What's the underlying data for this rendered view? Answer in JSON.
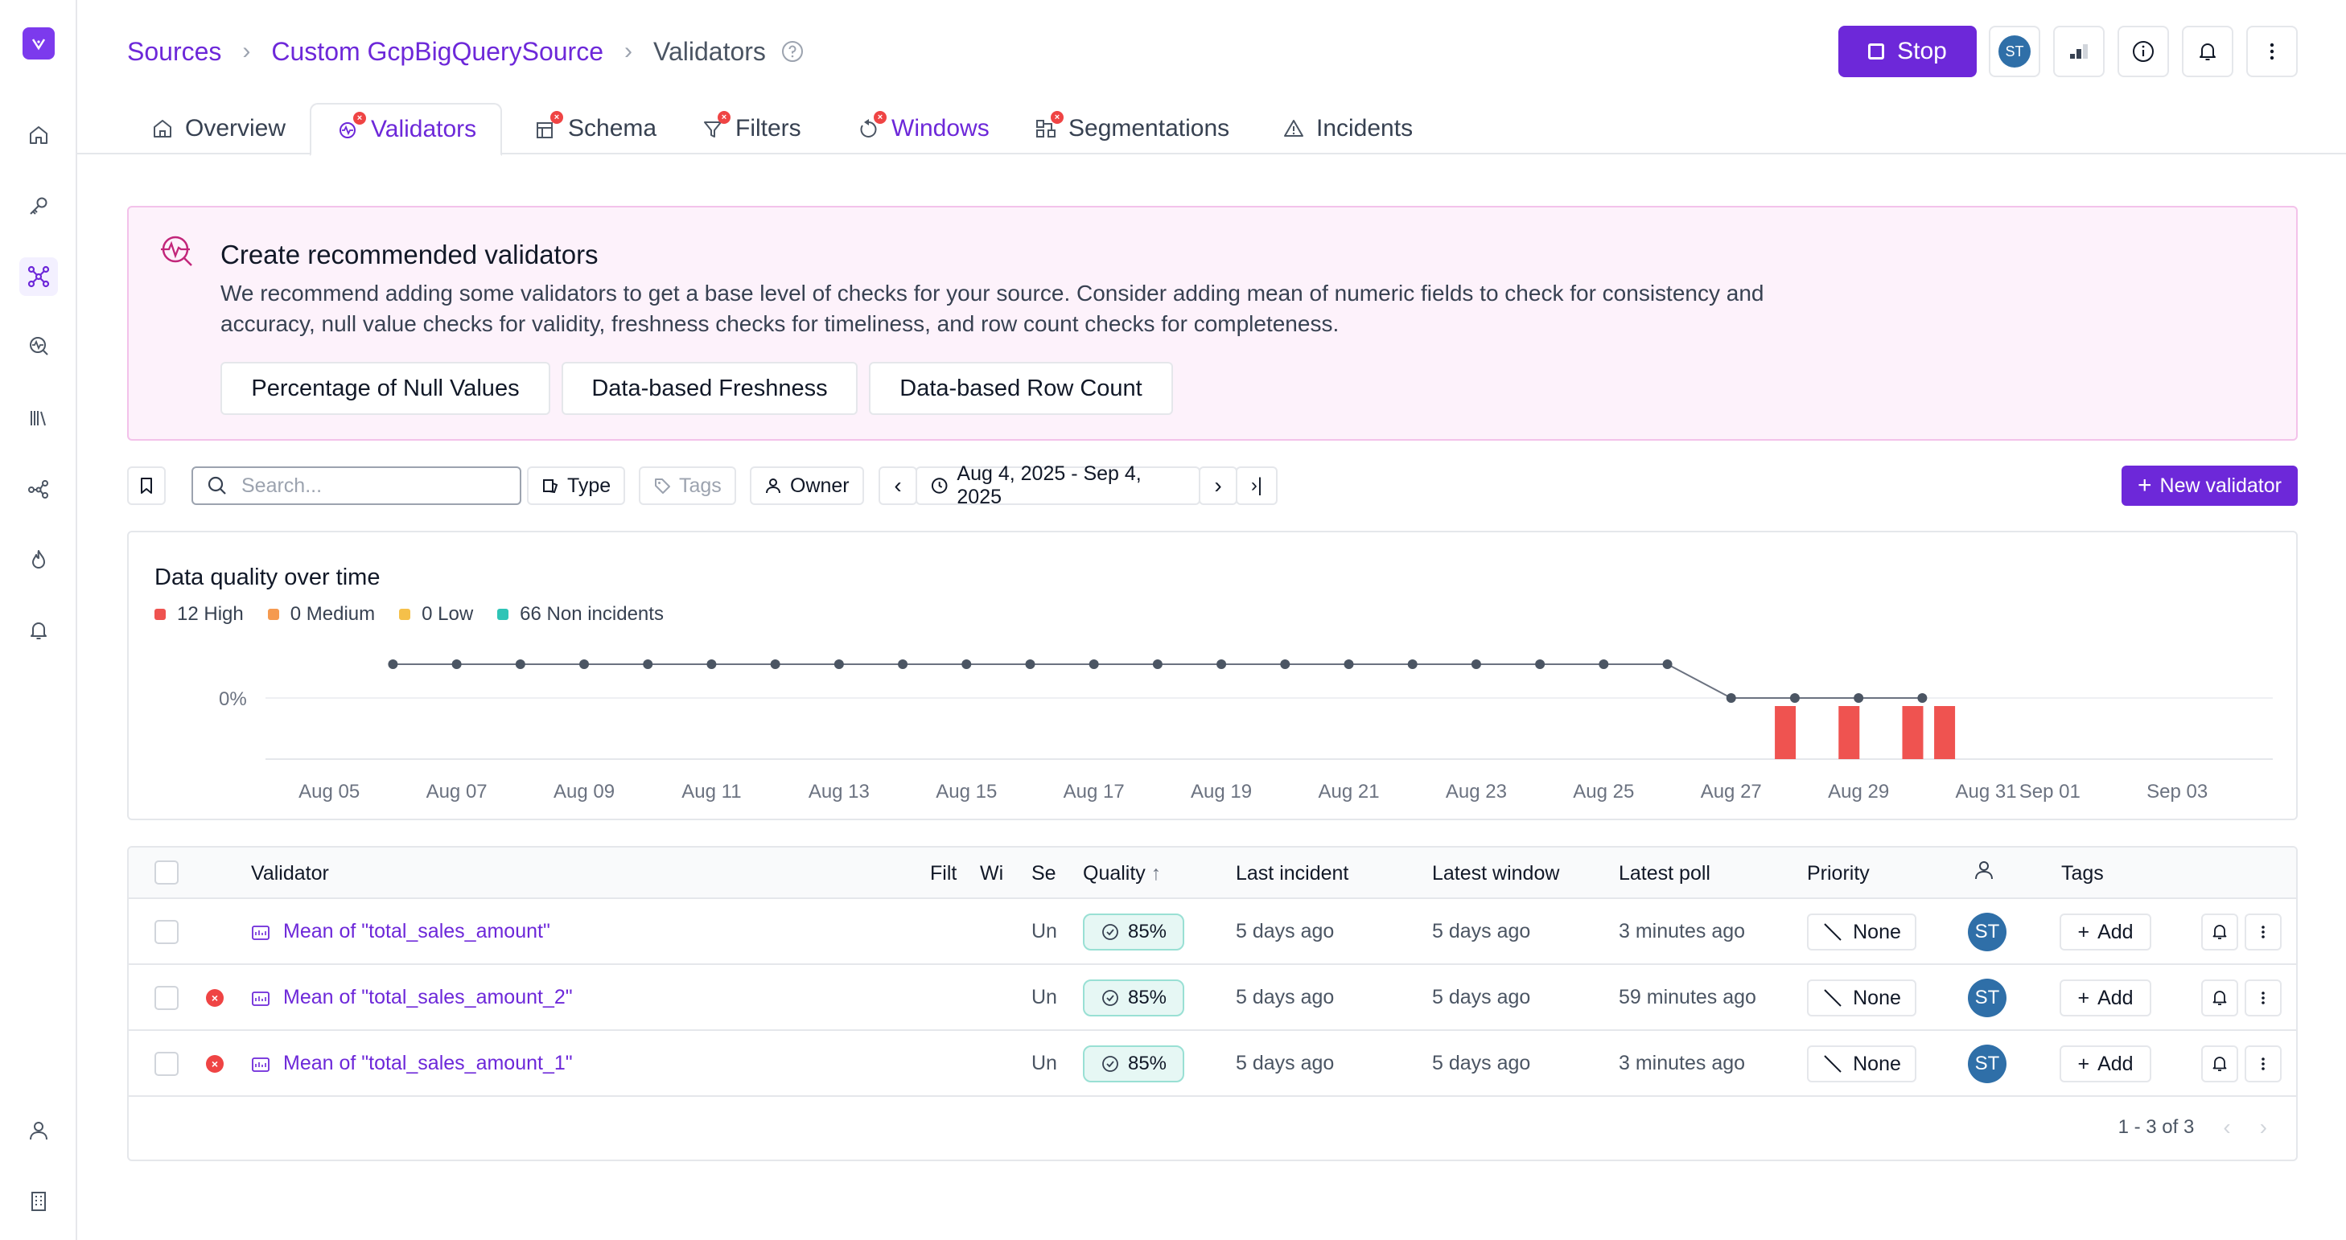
{
  "colors": {
    "accent": "#6d28d9",
    "high": "#ef5350",
    "medium": "#f59a50",
    "low": "#f5c04a",
    "non_incident": "#2ec4b6"
  },
  "sidebar": {
    "items": [
      "home-icon",
      "key-icon",
      "hub-icon",
      "search-activity-icon",
      "library-icon",
      "lineage-icon",
      "fire-icon",
      "bell-icon",
      "user-icon",
      "building-icon"
    ]
  },
  "breadcrumb": {
    "sources": "Sources",
    "source_name": "Custom GcpBigQuerySource",
    "current": "Validators"
  },
  "header": {
    "stop_label": "Stop",
    "avatar_initials": "ST"
  },
  "tabs": [
    {
      "label": "Overview"
    },
    {
      "label": "Validators"
    },
    {
      "label": "Schema"
    },
    {
      "label": "Filters"
    },
    {
      "label": "Windows"
    },
    {
      "label": "Segmentations"
    },
    {
      "label": "Incidents"
    }
  ],
  "banner": {
    "title": "Create recommended validators",
    "text": "We recommend adding some validators to get a base level of checks for your source. Consider adding mean of numeric fields to check for consistency and accuracy, null value checks for validity, freshness checks for timeliness, and row count checks for completeness.",
    "buttons": [
      "Percentage of Null Values",
      "Data-based Freshness",
      "Data-based Row Count"
    ]
  },
  "toolbar": {
    "search_placeholder": "Search...",
    "type_label": "Type",
    "tags_label": "Tags",
    "owner_label": "Owner",
    "date_range": "Aug 4, 2025 - Sep 4, 2025",
    "new_validator_label": "New validator"
  },
  "chart_panel": {
    "title": "Data quality over time",
    "legend": [
      {
        "label": "12 High",
        "color": "#ef5350"
      },
      {
        "label": "0 Medium",
        "color": "#f59a50"
      },
      {
        "label": "0 Low",
        "color": "#f5c04a"
      },
      {
        "label": "66 Non incidents",
        "color": "#2ec4b6"
      }
    ]
  },
  "chart_data": {
    "type": "line",
    "title": "Data quality over time",
    "y_tick_label": "0%",
    "x_tick_labels": [
      "Aug 05",
      "Aug 07",
      "Aug 09",
      "Aug 11",
      "Aug 13",
      "Aug 15",
      "Aug 17",
      "Aug 19",
      "Aug 21",
      "Aug 23",
      "Aug 25",
      "Aug 27",
      "Aug 29",
      "Aug 31",
      "Sep 01",
      "Sep 03"
    ],
    "x_tick_days": [
      5,
      7,
      9,
      11,
      13,
      15,
      17,
      19,
      21,
      23,
      25,
      27,
      29,
      31,
      32,
      34
    ],
    "x_range_days": [
      4,
      35.5
    ],
    "line_days": [
      6,
      7,
      8,
      9,
      10,
      11,
      12,
      13,
      14,
      15,
      16,
      17,
      18,
      19,
      20,
      21,
      22,
      23,
      24,
      25,
      26,
      27,
      28,
      29,
      30
    ],
    "line_level": [
      1,
      1,
      1,
      1,
      1,
      1,
      1,
      1,
      1,
      1,
      1,
      1,
      1,
      1,
      1,
      1,
      1,
      1,
      1,
      1,
      1,
      0,
      0,
      0,
      0
    ],
    "incident_bars": {
      "series": "High",
      "days": [
        27.85,
        28.85,
        29.85,
        30.35
      ],
      "counts": [
        3,
        3,
        3,
        3
      ]
    }
  },
  "table": {
    "columns": [
      "Validator",
      "Filt",
      "Wi",
      "Se",
      "Quality",
      "Last incident",
      "Latest window",
      "Latest poll",
      "Priority",
      "Tags"
    ],
    "rows": [
      {
        "error": false,
        "name": "Mean of \"total_sales_amount\"",
        "se": "Un",
        "quality": "85%",
        "last_incident": "5 days ago",
        "latest_window": "5 days ago",
        "latest_poll": "3 minutes ago",
        "priority": "None",
        "owner": "ST",
        "tags_btn": "Add"
      },
      {
        "error": true,
        "name": "Mean of \"total_sales_amount_2\"",
        "se": "Un",
        "quality": "85%",
        "last_incident": "5 days ago",
        "latest_window": "5 days ago",
        "latest_poll": "59 minutes ago",
        "priority": "None",
        "owner": "ST",
        "tags_btn": "Add"
      },
      {
        "error": true,
        "name": "Mean of \"total_sales_amount_1\"",
        "se": "Un",
        "quality": "85%",
        "last_incident": "5 days ago",
        "latest_window": "5 days ago",
        "latest_poll": "3 minutes ago",
        "priority": "None",
        "owner": "ST",
        "tags_btn": "Add"
      }
    ],
    "pagination": "1 - 3 of 3"
  }
}
